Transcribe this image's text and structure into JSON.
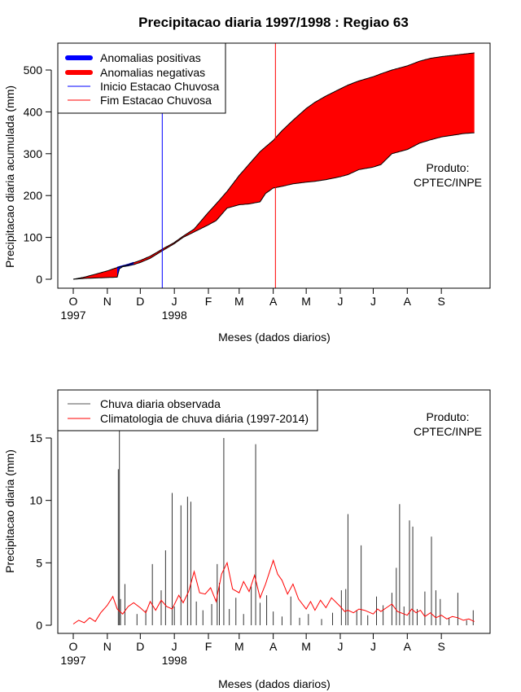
{
  "title": "Precipitacao diaria 1997/1998 : Regiao 63",
  "chart_data": [
    {
      "type": "area",
      "name": "cumulative",
      "xlabel": "Meses (dados diarios)",
      "ylabel": "Precipitacao diaria acumulada (mm)",
      "ylim": [
        0,
        550
      ],
      "yticks": [
        0,
        100,
        200,
        300,
        400,
        500
      ],
      "xlim_days": [
        0,
        366
      ],
      "month_ticks": [
        {
          "label": "O",
          "day": 0
        },
        {
          "label": "N",
          "day": 31
        },
        {
          "label": "D",
          "day": 61
        },
        {
          "label": "J",
          "day": 92
        },
        {
          "label": "F",
          "day": 123
        },
        {
          "label": "M",
          "day": 151
        },
        {
          "label": "A",
          "day": 182
        },
        {
          "label": "M",
          "day": 212
        },
        {
          "label": "J",
          "day": 243
        },
        {
          "label": "J",
          "day": 273
        },
        {
          "label": "A",
          "day": 304
        },
        {
          "label": "S",
          "day": 335
        }
      ],
      "year_labels": [
        {
          "label": "1997",
          "day": 0
        },
        {
          "label": "1998",
          "day": 92
        }
      ],
      "legend": [
        {
          "label": "Anomalias positivas",
          "color": "#0000ff",
          "style": "thick"
        },
        {
          "label": "Anomalias negativas",
          "color": "#ff0000",
          "style": "thick"
        },
        {
          "label": "Inicio Estacao Chuvosa",
          "color": "#0000ff",
          "style": "thin"
        },
        {
          "label": "Fim Estacao Chuvosa",
          "color": "#ff0000",
          "style": "thin"
        }
      ],
      "annotation": [
        "Produto:",
        "CPTEC/INPE"
      ],
      "rainy_season_start_day": 81,
      "rainy_season_end_day": 184,
      "climatology_cumulative": {
        "days": [
          0,
          10,
          20,
          31,
          40,
          50,
          61,
          70,
          81,
          92,
          100,
          110,
          123,
          130,
          140,
          151,
          160,
          170,
          182,
          190,
          200,
          212,
          220,
          230,
          243,
          250,
          260,
          273,
          280,
          290,
          304,
          315,
          325,
          335,
          345,
          355,
          365
        ],
        "values": [
          0,
          5,
          12,
          20,
          28,
          35,
          45,
          55,
          72,
          88,
          103,
          120,
          160,
          180,
          210,
          248,
          275,
          305,
          332,
          355,
          380,
          408,
          423,
          438,
          455,
          464,
          474,
          484,
          491,
          500,
          510,
          521,
          528,
          532,
          535,
          538,
          541
        ]
      },
      "observed_cumulative": {
        "days": [
          0,
          10,
          20,
          31,
          40,
          42,
          45,
          50,
          55,
          61,
          70,
          81,
          92,
          100,
          110,
          123,
          130,
          140,
          151,
          160,
          170,
          175,
          182,
          190,
          200,
          212,
          220,
          230,
          243,
          250,
          260,
          273,
          280,
          290,
          304,
          315,
          325,
          335,
          345,
          355,
          365
        ],
        "values": [
          0,
          2,
          3,
          4,
          5,
          25,
          30,
          32,
          35,
          40,
          50,
          68,
          85,
          100,
          113,
          130,
          140,
          170,
          178,
          180,
          185,
          205,
          218,
          222,
          228,
          232,
          234,
          238,
          245,
          250,
          262,
          268,
          274,
          300,
          310,
          325,
          333,
          340,
          344,
          348,
          350
        ]
      },
      "positive_anomaly_days": [
        40,
        55
      ]
    },
    {
      "type": "bar+line",
      "name": "daily",
      "xlabel": "Meses (dados diarios)",
      "ylabel": "Precipitacao diaria (mm)",
      "ylim": [
        0,
        18
      ],
      "yticks": [
        0,
        5,
        10,
        15
      ],
      "xlim_days": [
        0,
        366
      ],
      "month_ticks": [
        {
          "label": "O",
          "day": 0
        },
        {
          "label": "N",
          "day": 31
        },
        {
          "label": "D",
          "day": 61
        },
        {
          "label": "J",
          "day": 92
        },
        {
          "label": "F",
          "day": 123
        },
        {
          "label": "M",
          "day": 151
        },
        {
          "label": "A",
          "day": 182
        },
        {
          "label": "M",
          "day": 212
        },
        {
          "label": "J",
          "day": 243
        },
        {
          "label": "J",
          "day": 273
        },
        {
          "label": "A",
          "day": 304
        },
        {
          "label": "S",
          "day": 335
        }
      ],
      "year_labels": [
        {
          "label": "1997",
          "day": 0
        },
        {
          "label": "1998",
          "day": 92
        }
      ],
      "legend": [
        {
          "label": "Chuva diaria observada",
          "color": "#555555"
        },
        {
          "label": "Climatologia de chuva diária (1997-2014)",
          "color": "#ff0000"
        }
      ],
      "annotation": [
        "Produto:",
        "CPTEC/INPE"
      ],
      "observed_daily": [
        {
          "day": 41,
          "value": 12.5
        },
        {
          "day": 42,
          "value": 17.8
        },
        {
          "day": 43,
          "value": 2.1
        },
        {
          "day": 47,
          "value": 3.3
        },
        {
          "day": 58,
          "value": 0.9
        },
        {
          "day": 66,
          "value": 1.2
        },
        {
          "day": 72,
          "value": 4.9
        },
        {
          "day": 80,
          "value": 2.8
        },
        {
          "day": 84,
          "value": 6.0
        },
        {
          "day": 90,
          "value": 10.6
        },
        {
          "day": 92,
          "value": 1.5
        },
        {
          "day": 98,
          "value": 9.6
        },
        {
          "day": 104,
          "value": 10.3
        },
        {
          "day": 107,
          "value": 9.9
        },
        {
          "day": 112,
          "value": 1.9
        },
        {
          "day": 118,
          "value": 1.2
        },
        {
          "day": 126,
          "value": 1.7
        },
        {
          "day": 131,
          "value": 4.9
        },
        {
          "day": 133,
          "value": 3.4
        },
        {
          "day": 137,
          "value": 15.0
        },
        {
          "day": 142,
          "value": 1.3
        },
        {
          "day": 148,
          "value": 2.2
        },
        {
          "day": 155,
          "value": 0.9
        },
        {
          "day": 162,
          "value": 3.1
        },
        {
          "day": 166,
          "value": 14.5
        },
        {
          "day": 170,
          "value": 1.8
        },
        {
          "day": 176,
          "value": 2.4
        },
        {
          "day": 182,
          "value": 1.1
        },
        {
          "day": 190,
          "value": 0.7
        },
        {
          "day": 198,
          "value": 2.3
        },
        {
          "day": 206,
          "value": 0.6
        },
        {
          "day": 214,
          "value": 0.9
        },
        {
          "day": 226,
          "value": 0.5
        },
        {
          "day": 236,
          "value": 1.0
        },
        {
          "day": 244,
          "value": 2.8
        },
        {
          "day": 248,
          "value": 2.9
        },
        {
          "day": 250,
          "value": 8.9
        },
        {
          "day": 258,
          "value": 1.2
        },
        {
          "day": 262,
          "value": 6.4
        },
        {
          "day": 268,
          "value": 0.8
        },
        {
          "day": 276,
          "value": 2.3
        },
        {
          "day": 282,
          "value": 1.6
        },
        {
          "day": 290,
          "value": 2.6
        },
        {
          "day": 294,
          "value": 4.6
        },
        {
          "day": 297,
          "value": 9.7
        },
        {
          "day": 301,
          "value": 1.5
        },
        {
          "day": 306,
          "value": 8.4
        },
        {
          "day": 309,
          "value": 7.9
        },
        {
          "day": 313,
          "value": 1.3
        },
        {
          "day": 320,
          "value": 2.7
        },
        {
          "day": 326,
          "value": 7.1
        },
        {
          "day": 330,
          "value": 2.8
        },
        {
          "day": 334,
          "value": 2.1
        },
        {
          "day": 342,
          "value": 0.6
        },
        {
          "day": 350,
          "value": 2.6
        },
        {
          "day": 358,
          "value": 0.4
        },
        {
          "day": 364,
          "value": 1.2
        }
      ],
      "climatology_daily": {
        "days": [
          0,
          5,
          10,
          15,
          20,
          25,
          31,
          36,
          40,
          45,
          50,
          55,
          61,
          66,
          70,
          75,
          80,
          85,
          90,
          96,
          100,
          105,
          110,
          115,
          120,
          125,
          130,
          135,
          140,
          145,
          151,
          155,
          160,
          165,
          170,
          175,
          182,
          186,
          190,
          195,
          200,
          205,
          212,
          216,
          220,
          225,
          230,
          235,
          243,
          247,
          250,
          255,
          260,
          265,
          273,
          277,
          280,
          285,
          290,
          295,
          304,
          308,
          312,
          316,
          320,
          325,
          330,
          335,
          340,
          345,
          350,
          355,
          360,
          365
        ],
        "values": [
          0.1,
          0.4,
          0.2,
          0.6,
          0.3,
          1.0,
          1.6,
          2.3,
          1.3,
          0.9,
          1.5,
          1.8,
          1.4,
          1.0,
          1.9,
          1.2,
          2.0,
          1.5,
          1.3,
          2.4,
          1.8,
          2.7,
          4.3,
          2.6,
          2.5,
          3.0,
          1.9,
          4.1,
          5.0,
          2.9,
          2.6,
          3.5,
          2.7,
          4.0,
          2.2,
          3.3,
          5.2,
          4.1,
          3.6,
          2.5,
          3.3,
          2.1,
          1.3,
          1.9,
          1.2,
          2.0,
          1.4,
          2.2,
          1.5,
          1.1,
          1.2,
          1.0,
          1.3,
          1.2,
          0.9,
          1.3,
          1.1,
          1.4,
          1.7,
          1.1,
          0.8,
          1.3,
          1.0,
          1.2,
          0.7,
          1.0,
          0.6,
          0.8,
          0.5,
          0.7,
          0.6,
          0.4,
          0.5,
          0.3
        ]
      }
    }
  ]
}
